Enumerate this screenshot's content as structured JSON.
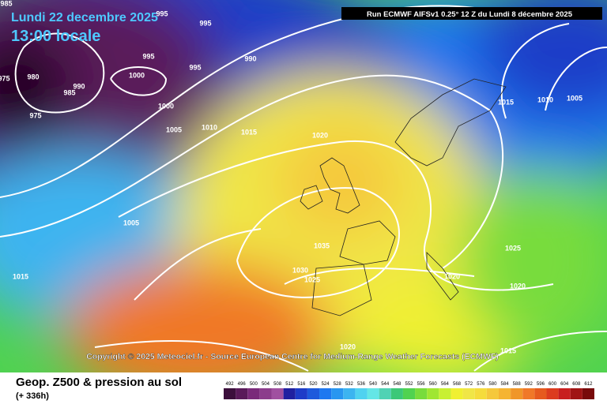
{
  "header": {
    "date": "Lundi 22 decembre 2025",
    "time": "13:00 locale",
    "run": "Run ECMWF AIFSv1 0.25° 12 Z du Lundi 8 décembre 2025"
  },
  "map": {
    "copyright": "Copyright © 2025 Meteociel.fr - Source European Centre for Medium-Range Weather Forecasts (ECMWF)",
    "isobar_labels": [
      985,
      995,
      995,
      980,
      975,
      985,
      990,
      1000,
      995,
      995,
      990,
      975,
      1000,
      1005,
      1010,
      1015,
      1020,
      1015,
      1010,
      1005,
      1005,
      1035,
      1030,
      1025,
      1020,
      1025,
      1020,
      1015,
      1020,
      1015
    ]
  },
  "legend": {
    "title": "Geop. Z500 & pression au sol",
    "subtitle": "(+ 336h)",
    "scale": [
      492,
      496,
      500,
      504,
      508,
      512,
      516,
      520,
      524,
      528,
      532,
      536,
      540,
      544,
      548,
      552,
      556,
      560,
      564,
      568,
      572,
      576,
      580,
      584,
      588,
      592,
      596,
      600,
      604,
      608,
      612
    ],
    "colors": [
      "#3c0f3c",
      "#5a1a5a",
      "#7a2a7a",
      "#8c3c8c",
      "#a050a0",
      "#2020a0",
      "#1e3cc8",
      "#1e5adc",
      "#1e78f0",
      "#2896f0",
      "#3cb4f0",
      "#50d2f0",
      "#64e6e6",
      "#50d2b4",
      "#3cc878",
      "#50d250",
      "#78dc3c",
      "#a0e632",
      "#c8f032",
      "#f0f032",
      "#f0e646",
      "#f5dc3c",
      "#f5c83c",
      "#f5b432",
      "#f09628",
      "#f07828",
      "#e65a1e",
      "#dc3c1e",
      "#c81e1e",
      "#a01414",
      "#780a0a"
    ]
  }
}
